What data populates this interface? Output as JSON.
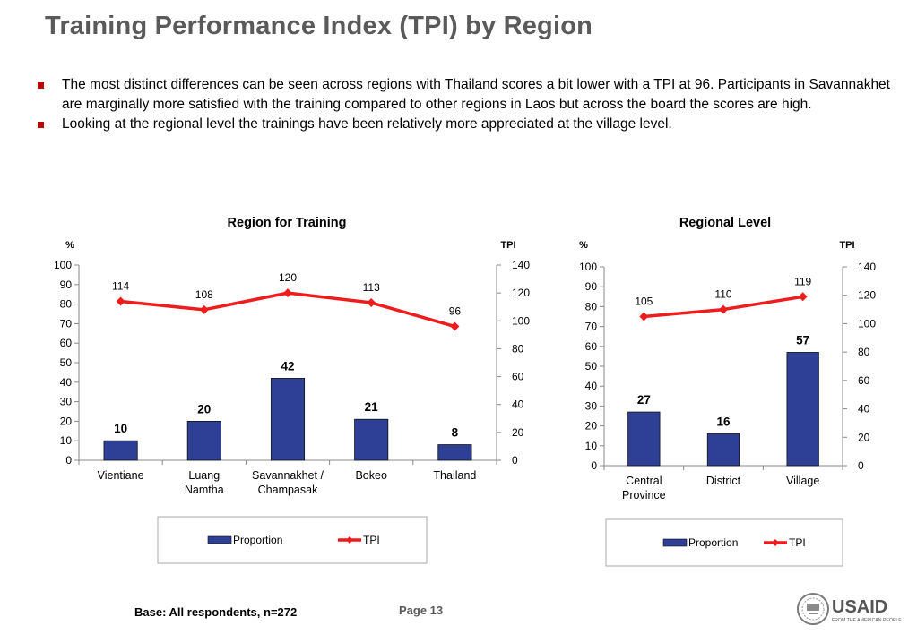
{
  "page": {
    "title": "Training Performance Index (TPI) by Region",
    "bullets": [
      "The most distinct differences can be seen across regions with Thailand scores a bit lower with a TPI at 96. Participants in Savannakhet are marginally more satisfied with the training compared to other regions in Laos but across the board the scores are high.",
      "Looking at the regional level the trainings have been relatively more appreciated at the village level."
    ],
    "base_note": "Base: All respondents, n=272",
    "page_number": "Page 13",
    "logo_text": "USAID",
    "logo_tagline": "FROM THE AMERICAN PEOPLE"
  },
  "colors": {
    "bar": "#2e3f96",
    "line": "#ee1c1c",
    "title": "#5a5a5a",
    "bullet": "#c00000"
  },
  "chart_data": [
    {
      "type": "bar",
      "title": "Region for Training",
      "ylabel_left": "%",
      "ylabel_right": "TPI",
      "categories": [
        [
          "Vientiane"
        ],
        [
          "Luang",
          "Namtha"
        ],
        [
          "Savannakhet /",
          "Champasak"
        ],
        [
          "Bokeo"
        ],
        [
          "Thailand"
        ]
      ],
      "series": [
        {
          "name": "Proportion",
          "type": "bar",
          "axis": "left",
          "values": [
            10,
            20,
            42,
            21,
            8
          ]
        },
        {
          "name": "TPI",
          "type": "line",
          "axis": "right",
          "values": [
            114,
            108,
            120,
            113,
            96
          ]
        }
      ],
      "ylim_left": [
        0,
        100
      ],
      "yticks_left": [
        0,
        10,
        20,
        30,
        40,
        50,
        60,
        70,
        80,
        90,
        100
      ],
      "ylim_right": [
        0,
        140
      ],
      "yticks_right": [
        0,
        20,
        40,
        60,
        80,
        100,
        120,
        140
      ],
      "legend": "bottom",
      "grid": false
    },
    {
      "type": "bar",
      "title": "Regional Level",
      "ylabel_left": "%",
      "ylabel_right": "TPI",
      "categories": [
        [
          "Central",
          "Province"
        ],
        [
          "District"
        ],
        [
          "Village"
        ]
      ],
      "series": [
        {
          "name": "Proportion",
          "type": "bar",
          "axis": "left",
          "values": [
            27,
            16,
            57
          ]
        },
        {
          "name": "TPI",
          "type": "line",
          "axis": "right",
          "values": [
            105,
            110,
            119
          ]
        }
      ],
      "ylim_left": [
        0,
        100
      ],
      "yticks_left": [
        0,
        10,
        20,
        30,
        40,
        50,
        60,
        70,
        80,
        90,
        100
      ],
      "ylim_right": [
        0,
        140
      ],
      "yticks_right": [
        0,
        20,
        40,
        60,
        80,
        100,
        120,
        140
      ],
      "legend": "bottom",
      "grid": false
    }
  ]
}
